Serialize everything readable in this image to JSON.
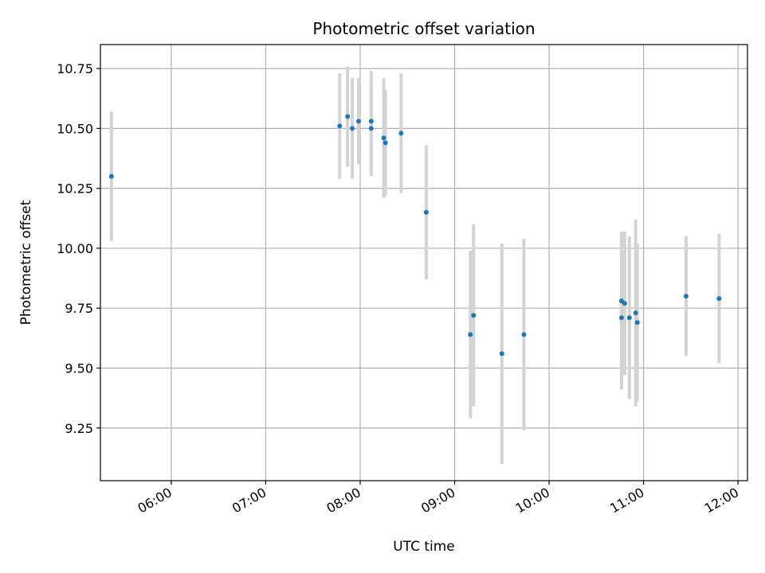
{
  "chart_data": {
    "type": "scatter",
    "title": "Photometric offset variation",
    "xlabel": "UTC time",
    "ylabel": "Photometric offset",
    "grid": true,
    "x_axis_type": "time",
    "xlim": [
      "05:15",
      "12:06"
    ],
    "ylim": [
      9.03,
      10.85
    ],
    "x_ticks": [
      "06:00",
      "07:00",
      "08:00",
      "09:00",
      "10:00",
      "11:00",
      "12:00"
    ],
    "y_ticks": [
      9.25,
      9.5,
      9.75,
      10.0,
      10.25,
      10.5,
      10.75
    ],
    "y_tick_labels": [
      "9.25",
      "9.50",
      "9.75",
      "10.00",
      "10.25",
      "10.50",
      "10.75"
    ],
    "marker_color": "#1f77b4",
    "errorbar_color": "#d3d3d3",
    "series": [
      {
        "points": [
          {
            "x": "05:22",
            "y": 10.3,
            "yerr": 0.27
          },
          {
            "x": "07:47",
            "y": 10.51,
            "yerr": 0.22
          },
          {
            "x": "07:52",
            "y": 10.55,
            "yerr": 0.21
          },
          {
            "x": "07:55",
            "y": 10.5,
            "yerr": 0.21
          },
          {
            "x": "07:59",
            "y": 10.53,
            "yerr": 0.18
          },
          {
            "x": "08:07",
            "y": 10.53,
            "yerr": 0.21
          },
          {
            "x": "08:07",
            "y": 10.5,
            "yerr": 0.2
          },
          {
            "x": "08:15",
            "y": 10.46,
            "yerr": 0.25
          },
          {
            "x": "08:16",
            "y": 10.44,
            "yerr": 0.22
          },
          {
            "x": "08:26",
            "y": 10.48,
            "yerr": 0.25
          },
          {
            "x": "08:42",
            "y": 10.15,
            "yerr": 0.28
          },
          {
            "x": "09:10",
            "y": 9.64,
            "yerr": 0.35
          },
          {
            "x": "09:12",
            "y": 9.72,
            "yerr": 0.38
          },
          {
            "x": "09:30",
            "y": 9.56,
            "yerr": 0.46
          },
          {
            "x": "09:44",
            "y": 9.64,
            "yerr": 0.4
          },
          {
            "x": "10:46",
            "y": 9.78,
            "yerr": 0.29
          },
          {
            "x": "10:46",
            "y": 9.71,
            "yerr": 0.3
          },
          {
            "x": "10:48",
            "y": 9.77,
            "yerr": 0.3
          },
          {
            "x": "10:51",
            "y": 9.71,
            "yerr": 0.34
          },
          {
            "x": "10:55",
            "y": 9.73,
            "yerr": 0.39
          },
          {
            "x": "10:56",
            "y": 9.69,
            "yerr": 0.33
          },
          {
            "x": "11:27",
            "y": 9.8,
            "yerr": 0.25
          },
          {
            "x": "11:48",
            "y": 9.79,
            "yerr": 0.27
          }
        ]
      }
    ]
  }
}
